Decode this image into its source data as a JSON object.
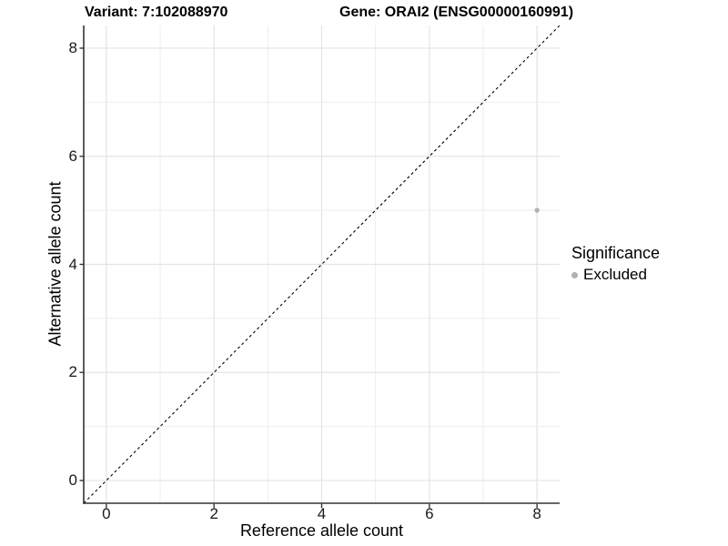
{
  "header": {
    "variant_title": "Variant: 7:102088970",
    "gene_title": "Gene: ORAI2 (ENSG00000160991)"
  },
  "x_axis": {
    "label": "Reference allele count",
    "tick_labels": [
      "0",
      "2",
      "4",
      "6",
      "8"
    ]
  },
  "y_axis": {
    "label": "Alternative allele count",
    "tick_labels": [
      "0",
      "2",
      "4",
      "6",
      "8"
    ]
  },
  "legend": {
    "title": "Significance",
    "items": [
      {
        "label": "Excluded",
        "color": "#b1b1b1",
        "marker": "circle-icon"
      }
    ]
  },
  "colors": {
    "background": "#ffffff",
    "grid_major": "#e4e4e4",
    "grid_minor": "#eeeeee",
    "axis_line": "#333333",
    "identity_line": "#000000",
    "point": "#b1b1b1",
    "text": "#000000"
  },
  "chart_data": {
    "type": "scatter",
    "title": "Variant: 7:102088970   Gene: ORAI2 (ENSG00000160991)",
    "xlabel": "Reference allele count",
    "ylabel": "Alternative allele count",
    "xlim": [
      -0.42,
      8.42
    ],
    "ylim": [
      -0.42,
      8.42
    ],
    "x_ticks": [
      0,
      2,
      4,
      6,
      8
    ],
    "y_ticks": [
      0,
      2,
      4,
      6,
      8
    ],
    "grid": "on",
    "grid_every": 1,
    "legend_position": "right",
    "series": [
      {
        "name": "Excluded",
        "type": "scatter",
        "color": "#b1b1b1",
        "points": [
          {
            "x": 8,
            "y": 5
          }
        ]
      }
    ],
    "annotations": [
      {
        "type": "reference-line",
        "equation": "y = x",
        "style": "dashed",
        "color": "#000000",
        "from": [
          -0.42,
          -0.42
        ],
        "to": [
          8.42,
          8.42
        ]
      }
    ]
  }
}
